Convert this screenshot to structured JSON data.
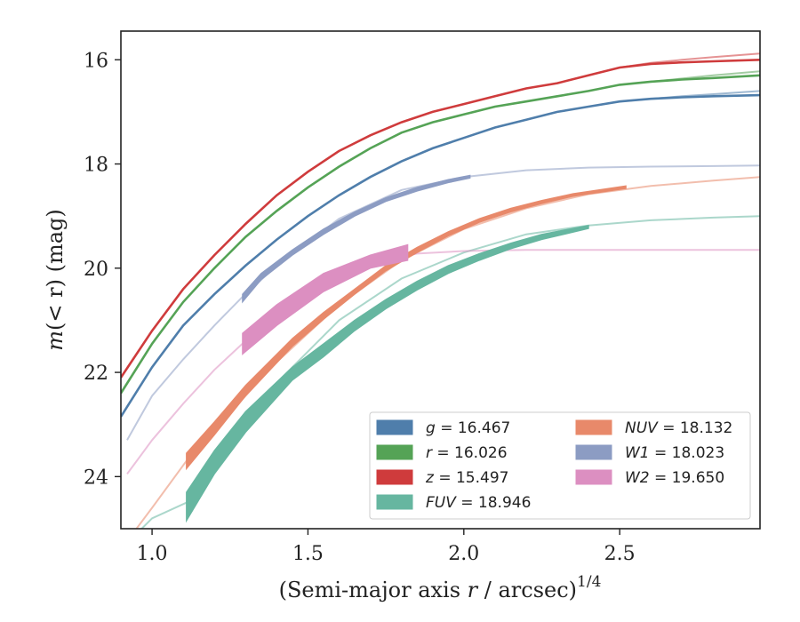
{
  "chart_data": {
    "type": "line",
    "xlabel": "(Semi-major axis r / arcsec)",
    "xlabel_prefix": "(Semi-major axis ",
    "xlabel_var": "r",
    "xlabel_suffix": " / arcsec)",
    "xlabel_exponent": "1/4",
    "ylabel": "m(< r) (mag)",
    "ylabel_prefix": "m",
    "ylabel_inner": "(< r) (mag)",
    "xlim": [
      0.9,
      2.95
    ],
    "ylim": [
      25.0,
      15.45
    ],
    "y_inverted": true,
    "xticks": [
      1.0,
      1.5,
      2.0,
      2.5
    ],
    "xtick_labels": [
      "1.0",
      "1.5",
      "2.0",
      "2.5"
    ],
    "yticks": [
      16,
      18,
      20,
      22,
      24
    ],
    "ytick_labels": [
      "16",
      "18",
      "20",
      "22",
      "24"
    ],
    "legend_position": "lower-right",
    "series": [
      {
        "name": "g = 16.467",
        "band": "g",
        "total": "16.467",
        "color": "#4f7eab",
        "kind": "line",
        "x": [
          0.9,
          1.0,
          1.1,
          1.2,
          1.3,
          1.4,
          1.5,
          1.6,
          1.7,
          1.8,
          1.9,
          2.0,
          2.1,
          2.2,
          2.3,
          2.4,
          2.5,
          2.6,
          2.7,
          2.8,
          2.95
        ],
        "y": [
          22.85,
          21.9,
          21.1,
          20.5,
          19.95,
          19.45,
          19.0,
          18.6,
          18.25,
          17.95,
          17.7,
          17.5,
          17.3,
          17.15,
          17.0,
          16.9,
          16.8,
          16.75,
          16.72,
          16.7,
          16.68
        ],
        "extrap_x": [
          2.5,
          2.6,
          2.7,
          2.8,
          2.95
        ],
        "extrap_y": [
          16.8,
          16.75,
          16.7,
          16.66,
          16.6
        ]
      },
      {
        "name": "r = 16.026",
        "band": "r",
        "total": "16.026",
        "color": "#55a356",
        "kind": "line",
        "x": [
          0.9,
          1.0,
          1.1,
          1.2,
          1.3,
          1.4,
          1.5,
          1.6,
          1.7,
          1.8,
          1.9,
          2.0,
          2.1,
          2.2,
          2.3,
          2.4,
          2.5,
          2.6,
          2.7,
          2.8,
          2.95
        ],
        "y": [
          22.4,
          21.45,
          20.65,
          20.0,
          19.4,
          18.9,
          18.45,
          18.05,
          17.7,
          17.4,
          17.2,
          17.05,
          16.9,
          16.8,
          16.7,
          16.6,
          16.48,
          16.42,
          16.38,
          16.35,
          16.3
        ],
        "extrap_x": [
          2.5,
          2.6,
          2.7,
          2.8,
          2.95
        ],
        "extrap_y": [
          16.48,
          16.42,
          16.36,
          16.3,
          16.22
        ]
      },
      {
        "name": "z = 15.497",
        "band": "z",
        "total": "15.497",
        "color": "#cf3b3c",
        "kind": "line",
        "x": [
          0.9,
          1.0,
          1.1,
          1.2,
          1.3,
          1.4,
          1.5,
          1.6,
          1.7,
          1.8,
          1.9,
          2.0,
          2.1,
          2.2,
          2.3,
          2.4,
          2.5,
          2.6,
          2.7,
          2.8,
          2.95
        ],
        "y": [
          22.1,
          21.2,
          20.4,
          19.75,
          19.15,
          18.6,
          18.15,
          17.75,
          17.45,
          17.2,
          17.0,
          16.85,
          16.7,
          16.55,
          16.45,
          16.3,
          16.15,
          16.08,
          16.05,
          16.03,
          16.0
        ],
        "extrap_x": [
          2.5,
          2.6,
          2.7,
          2.8,
          2.95
        ],
        "extrap_y": [
          16.15,
          16.06,
          16.0,
          15.95,
          15.88
        ]
      },
      {
        "name": "FUV = 18.946",
        "band": "FUV",
        "total": "18.946",
        "color": "#66b6a0",
        "kind": "band",
        "x": [
          1.11,
          1.2,
          1.3,
          1.45,
          1.55,
          1.65,
          1.75,
          1.85,
          1.95,
          2.05,
          2.15,
          2.25,
          2.4
        ],
        "y_low": [
          24.3,
          23.5,
          22.75,
          21.9,
          21.45,
          21.0,
          20.6,
          20.25,
          19.95,
          19.72,
          19.52,
          19.35,
          19.18
        ],
        "y_high": [
          24.85,
          23.95,
          23.15,
          22.15,
          21.7,
          21.2,
          20.78,
          20.42,
          20.1,
          19.85,
          19.63,
          19.45,
          19.24
        ],
        "extrap_x": [
          0.95,
          1.0,
          1.11,
          1.2,
          1.4,
          1.6,
          1.8,
          2.0,
          2.2,
          2.4,
          2.6,
          2.8,
          2.95
        ],
        "extrap_y": [
          25.1,
          24.8,
          24.5,
          23.7,
          22.2,
          21.0,
          20.2,
          19.7,
          19.35,
          19.18,
          19.08,
          19.03,
          19.0
        ]
      },
      {
        "name": "NUV = 18.132",
        "band": "NUV",
        "total": "18.132",
        "color": "#e8896a",
        "kind": "band",
        "x": [
          1.11,
          1.2,
          1.3,
          1.45,
          1.55,
          1.65,
          1.75,
          1.85,
          1.95,
          2.05,
          2.15,
          2.25,
          2.35,
          2.52
        ],
        "y_low": [
          23.55,
          22.95,
          22.25,
          21.35,
          20.85,
          20.4,
          19.95,
          19.6,
          19.3,
          19.05,
          18.85,
          18.7,
          18.57,
          18.42
        ],
        "y_high": [
          23.85,
          23.2,
          22.45,
          21.5,
          20.98,
          20.5,
          20.05,
          19.7,
          19.38,
          19.12,
          18.92,
          18.76,
          18.62,
          18.47
        ],
        "extrap_x": [
          0.95,
          1.0,
          1.11,
          1.2,
          1.4,
          1.6,
          1.8,
          2.0,
          2.2,
          2.4,
          2.6,
          2.8,
          2.95
        ],
        "extrap_y": [
          25.0,
          24.6,
          23.7,
          23.1,
          21.8,
          20.7,
          19.85,
          19.25,
          18.85,
          18.58,
          18.42,
          18.32,
          18.25
        ]
      },
      {
        "name": "W1 = 18.023",
        "band": "W1",
        "total": "18.023",
        "color": "#8c9cc3",
        "kind": "band",
        "x": [
          1.29,
          1.35,
          1.45,
          1.55,
          1.65,
          1.75,
          1.85,
          1.95,
          2.02
        ],
        "y_low": [
          20.5,
          20.1,
          19.65,
          19.25,
          18.92,
          18.65,
          18.45,
          18.3,
          18.22
        ],
        "y_high": [
          20.65,
          20.22,
          19.75,
          19.35,
          19.0,
          18.72,
          18.52,
          18.36,
          18.27
        ],
        "extrap_x": [
          0.92,
          1.0,
          1.1,
          1.2,
          1.29,
          1.4,
          1.6,
          1.8,
          2.0,
          2.2,
          2.4,
          2.6,
          2.8,
          2.95
        ],
        "extrap_y": [
          23.3,
          22.45,
          21.75,
          21.1,
          20.55,
          19.95,
          19.05,
          18.5,
          18.25,
          18.12,
          18.07,
          18.05,
          18.04,
          18.03
        ]
      },
      {
        "name": "W2 = 19.650",
        "band": "W2",
        "total": "19.650",
        "color": "#dc8fc1",
        "kind": "band",
        "x": [
          1.29,
          1.4,
          1.55,
          1.7,
          1.82
        ],
        "y_low": [
          21.25,
          20.7,
          20.1,
          19.75,
          19.55
        ],
        "y_high": [
          21.65,
          21.1,
          20.45,
          20.0,
          19.85
        ],
        "extrap_x": [
          0.92,
          1.0,
          1.1,
          1.2,
          1.29,
          1.4,
          1.55,
          1.7,
          1.85,
          2.0,
          2.2,
          2.5,
          2.95
        ],
        "extrap_y": [
          23.95,
          23.3,
          22.6,
          21.95,
          21.45,
          20.9,
          20.3,
          19.9,
          19.72,
          19.67,
          19.65,
          19.65,
          19.65
        ]
      }
    ]
  }
}
